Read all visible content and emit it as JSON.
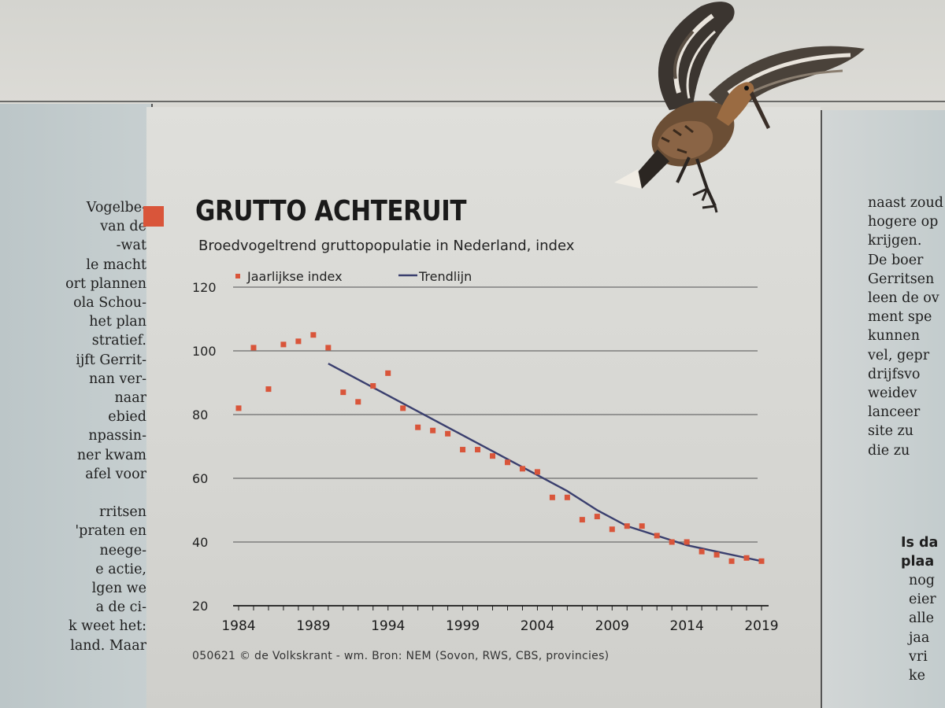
{
  "page": {
    "title": "GRUTTO ACHTERUIT",
    "subtitle": "Broedvogeltrend gruttopopulatie in Nederland, index",
    "source": "050621 © de Volkskrant - wm. Bron:  NEM (Sovon, RWS, CBS, provincies)"
  },
  "left_column": {
    "lines": [
      "Vogelbe-",
      "van de",
      "-wat",
      "le macht",
      "ort plannen",
      "ola Schou-",
      "het plan",
      "stratief.",
      "ijft Gerrit-",
      "nan ver-",
      "naar",
      "ebied",
      "npassin-",
      "ner kwam",
      "afel voor",
      "",
      "rritsen",
      "'praten en",
      "neege-",
      "e actie,",
      "lgen we",
      "a de ci-",
      "k weet het:",
      "land. Maar"
    ]
  },
  "right_column": {
    "lines": [
      "naast zoud",
      "hogere op",
      "krijgen.",
      "  De boer",
      "Gerritsen",
      "leen de ov",
      "ment spe",
      "kunnen",
      "vel, gepr",
      "drijfsvo",
      "weidev",
      "lanceer",
      "site zu",
      "die zu"
    ],
    "bold_lines": [
      "Is da",
      "plaa"
    ],
    "tail_lines": [
      "nog",
      "eier",
      "alle",
      "jaa",
      "vri",
      "ke"
    ]
  },
  "colors": {
    "marker": "#d9553a",
    "trend": "#3a3f6e",
    "grid": "#6c6c6c",
    "background": "#d9d8d3"
  },
  "chart_data": {
    "type": "scatter",
    "xlim": [
      1984,
      2019
    ],
    "ylim": [
      20,
      120
    ],
    "x_ticks": [
      1984,
      1989,
      1994,
      1999,
      2004,
      2009,
      2014,
      2019
    ],
    "y_ticks": [
      20,
      40,
      60,
      80,
      100,
      120
    ],
    "grid": true,
    "legend_position": "top-left",
    "series": [
      {
        "name": "Jaarlijkse index",
        "type": "scatter",
        "color": "#d9553a",
        "x": [
          1984,
          1985,
          1986,
          1987,
          1988,
          1989,
          1990,
          1991,
          1992,
          1993,
          1994,
          1995,
          1996,
          1997,
          1998,
          1999,
          2000,
          2001,
          2002,
          2003,
          2004,
          2005,
          2006,
          2007,
          2008,
          2009,
          2010,
          2011,
          2012,
          2013,
          2014,
          2015,
          2016,
          2017,
          2018,
          2019
        ],
        "y": [
          82,
          101,
          88,
          102,
          103,
          105,
          101,
          87,
          84,
          89,
          93,
          82,
          76,
          75,
          74,
          69,
          69,
          67,
          65,
          63,
          62,
          54,
          54,
          47,
          48,
          44,
          45,
          45,
          42,
          40,
          40,
          37,
          36,
          34,
          35,
          34
        ]
      },
      {
        "name": "Trendlijn",
        "type": "line",
        "color": "#3a3f6e",
        "x": [
          1990,
          1992,
          1994,
          1996,
          1998,
          2000,
          2002,
          2004,
          2006,
          2008,
          2010,
          2012,
          2014,
          2016,
          2018,
          2019
        ],
        "y": [
          96,
          91,
          86,
          81,
          76,
          71,
          66,
          61,
          56,
          50,
          45,
          42,
          39,
          37,
          35,
          34
        ]
      }
    ]
  }
}
